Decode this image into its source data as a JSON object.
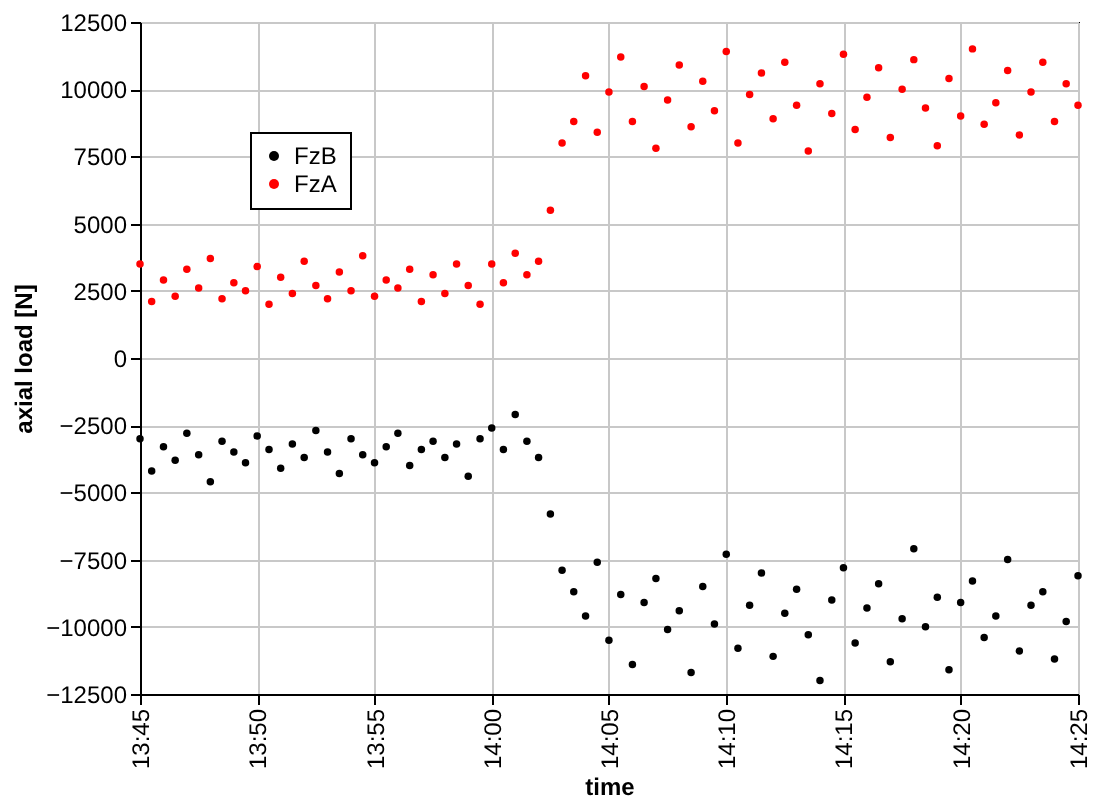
{
  "chart_data": {
    "type": "scatter",
    "xlabel": "time",
    "ylabel": "axial load [N]",
    "x": [
      13.75,
      13.7583,
      13.7667,
      13.775,
      13.7833,
      13.7917,
      13.8,
      13.8083,
      13.8167,
      13.825,
      13.8333,
      13.8417,
      13.85,
      13.8583,
      13.8667,
      13.875,
      13.8833,
      13.8917,
      13.9,
      13.9083,
      13.9167,
      13.925,
      13.9333,
      13.9417,
      13.95,
      13.9583,
      13.9667,
      13.975,
      13.9833,
      13.9917,
      14.0,
      14.0083,
      14.0167,
      14.025,
      14.0333,
      14.0417,
      14.05,
      14.0583,
      14.0667,
      14.075,
      14.0833,
      14.0917,
      14.1,
      14.1083,
      14.1167,
      14.125,
      14.1333,
      14.1417,
      14.15,
      14.1583,
      14.1667,
      14.175,
      14.1833,
      14.1917,
      14.2,
      14.2083,
      14.2167,
      14.225,
      14.2333,
      14.2417,
      14.25,
      14.2583,
      14.2667,
      14.275,
      14.2833,
      14.2917,
      14.3,
      14.3083,
      14.3167,
      14.325,
      14.3333,
      14.3417,
      14.35,
      14.3583,
      14.3667,
      14.375,
      14.3833,
      14.3917,
      14.4,
      14.4083,
      14.4167
    ],
    "series": [
      {
        "name": "FzB",
        "color": "#000000",
        "values": [
          -3000,
          -4200,
          -3300,
          -3800,
          -2800,
          -3600,
          -4600,
          -3100,
          -3500,
          -3900,
          -2900,
          -3400,
          -4100,
          -3200,
          -3700,
          -2700,
          -3500,
          -4300,
          -3000,
          -3600,
          -3900,
          -3300,
          -2800,
          -4000,
          -3400,
          -3100,
          -3700,
          -3200,
          -4400,
          -3000,
          -2600,
          -3400,
          -2100,
          -3100,
          -3700,
          -5800,
          -7900,
          -8700,
          -9600,
          -7600,
          -10500,
          -8800,
          -11400,
          -9100,
          -8200,
          -10100,
          -9400,
          -11700,
          -8500,
          -9900,
          -7300,
          -10800,
          -9200,
          -8000,
          -11100,
          -9500,
          -8600,
          -10300,
          -12000,
          -9000,
          -7800,
          -10600,
          -9300,
          -8400,
          -11300,
          -9700,
          -7100,
          -10000,
          -8900,
          -11600,
          -9100,
          -8300,
          -10400,
          -9600,
          -7500,
          -10900,
          -9200,
          -8700,
          -11200,
          -9800,
          -8100
        ]
      },
      {
        "name": "FzA",
        "color": "#ff0000",
        "values": [
          3500,
          2100,
          2900,
          2300,
          3300,
          2600,
          3700,
          2200,
          2800,
          2500,
          3400,
          2000,
          3000,
          2400,
          3600,
          2700,
          2200,
          3200,
          2500,
          3800,
          2300,
          2900,
          2600,
          3300,
          2100,
          3100,
          2400,
          3500,
          2700,
          2000,
          3500,
          2800,
          3900,
          3100,
          3600,
          5500,
          8000,
          8800,
          10500,
          8400,
          9900,
          11200,
          8800,
          10100,
          7800,
          9600,
          10900,
          8600,
          10300,
          9200,
          11400,
          8000,
          9800,
          10600,
          8900,
          11000,
          9400,
          7700,
          10200,
          9100,
          11300,
          8500,
          9700,
          10800,
          8200,
          10000,
          11100,
          9300,
          7900,
          10400,
          9000,
          11500,
          8700,
          9500,
          10700,
          8300,
          9900,
          11000,
          8800,
          10200,
          9400
        ]
      }
    ],
    "xlim": [
      13.75,
      14.4167
    ],
    "xticks": [
      {
        "value": 13.75,
        "label": "13:45"
      },
      {
        "value": 13.8333,
        "label": "13:50"
      },
      {
        "value": 13.9167,
        "label": "13:55"
      },
      {
        "value": 14.0,
        "label": "14:00"
      },
      {
        "value": 14.0833,
        "label": "14:05"
      },
      {
        "value": 14.1667,
        "label": "14:10"
      },
      {
        "value": 14.25,
        "label": "14:15"
      },
      {
        "value": 14.3333,
        "label": "14:20"
      },
      {
        "value": 14.4167,
        "label": "14:25"
      }
    ],
    "ylim": [
      -12500,
      12500
    ],
    "yticks": [
      -12500,
      -10000,
      -7500,
      -5000,
      -2500,
      0,
      2500,
      5000,
      7500,
      10000,
      12500
    ],
    "grid": true,
    "legend": "top left",
    "marker": "circle"
  }
}
